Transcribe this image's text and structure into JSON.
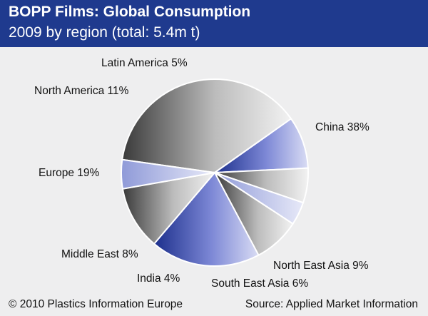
{
  "header": {
    "title": "BOPP Films: Global Consumption",
    "subtitle": "2009 by region (total: 5.4m t)"
  },
  "footer": {
    "copyright": "© 2010 Plastics Information Europe",
    "source": "Source: Applied Market Information"
  },
  "colors": {
    "header_background": "#1f3a8e",
    "background": "#eeeeef",
    "gray_dark": "#3a3a3a",
    "gray_light": "#f2f2f2",
    "blue_dark": "#1c2f8c",
    "blue_light": "#d9dcf4"
  },
  "chart_data": {
    "type": "pie",
    "title": "BOPP Films: Global Consumption",
    "subtitle": "2009 by region (total: 5.4m t)",
    "unit": "%",
    "slices": [
      {
        "label": "China 38%",
        "category": "China",
        "value": 38,
        "tone": "gray"
      },
      {
        "label": "North East Asia 9%",
        "category": "North East Asia",
        "value": 9,
        "tone": "blue"
      },
      {
        "label": "South East Asia 6%",
        "category": "South East Asia",
        "value": 6,
        "tone": "gray"
      },
      {
        "label": "India 4%",
        "category": "India",
        "value": 4,
        "tone": "lightblue"
      },
      {
        "label": "Middle East 8%",
        "category": "Middle East",
        "value": 8,
        "tone": "gray"
      },
      {
        "label": "Europe 19%",
        "category": "Europe",
        "value": 19,
        "tone": "blue"
      },
      {
        "label": "North America 11%",
        "category": "North America",
        "value": 11,
        "tone": "gray"
      },
      {
        "label": "Latin America 5%",
        "category": "Latin America",
        "value": 5,
        "tone": "lightblue"
      }
    ]
  }
}
